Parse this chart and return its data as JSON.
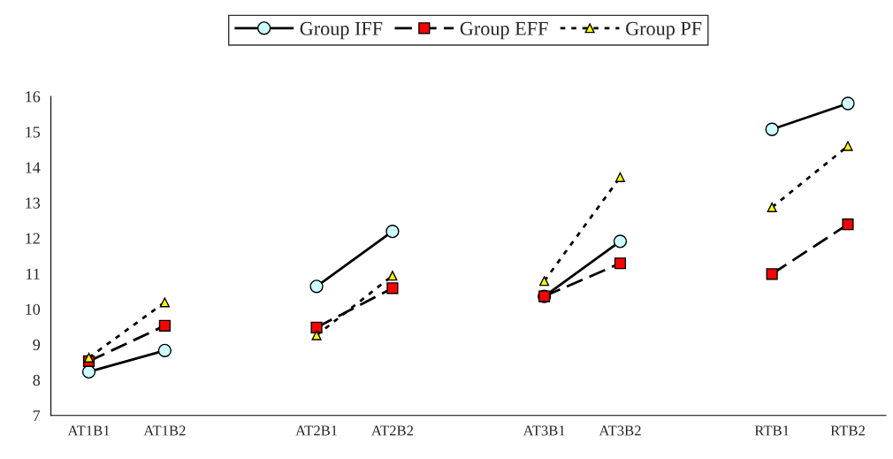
{
  "chart_data": {
    "type": "line",
    "categories": [
      "AT1B1",
      "AT1B2",
      null,
      "AT2B1",
      "AT2B2",
      null,
      "AT3B1",
      "AT3B2",
      null,
      "RTB1",
      "RTB2"
    ],
    "series": [
      {
        "name": "Group IFF",
        "color": "#ccffff",
        "marker": "circle",
        "line_style": "solid",
        "values": [
          8.23,
          8.83,
          null,
          10.64,
          12.19,
          null,
          10.36,
          11.91,
          null,
          15.07,
          15.8
        ]
      },
      {
        "name": "Group EFF",
        "color": "#ff0000",
        "marker": "square",
        "line_style": "dashed",
        "values": [
          8.53,
          9.53,
          null,
          9.48,
          10.59,
          null,
          10.36,
          11.29,
          null,
          10.99,
          12.39
        ]
      },
      {
        "name": "Group PF",
        "color": "#ffff00",
        "marker": "triangle",
        "line_style": "dotted",
        "values": [
          8.63,
          10.19,
          null,
          9.26,
          10.94,
          null,
          10.79,
          13.72,
          null,
          12.87,
          14.6
        ]
      }
    ],
    "ylim": [
      7,
      16
    ],
    "yticks": [
      7,
      8,
      9,
      10,
      11,
      12,
      13,
      14,
      15,
      16
    ],
    "grid": false,
    "legend": "top"
  }
}
